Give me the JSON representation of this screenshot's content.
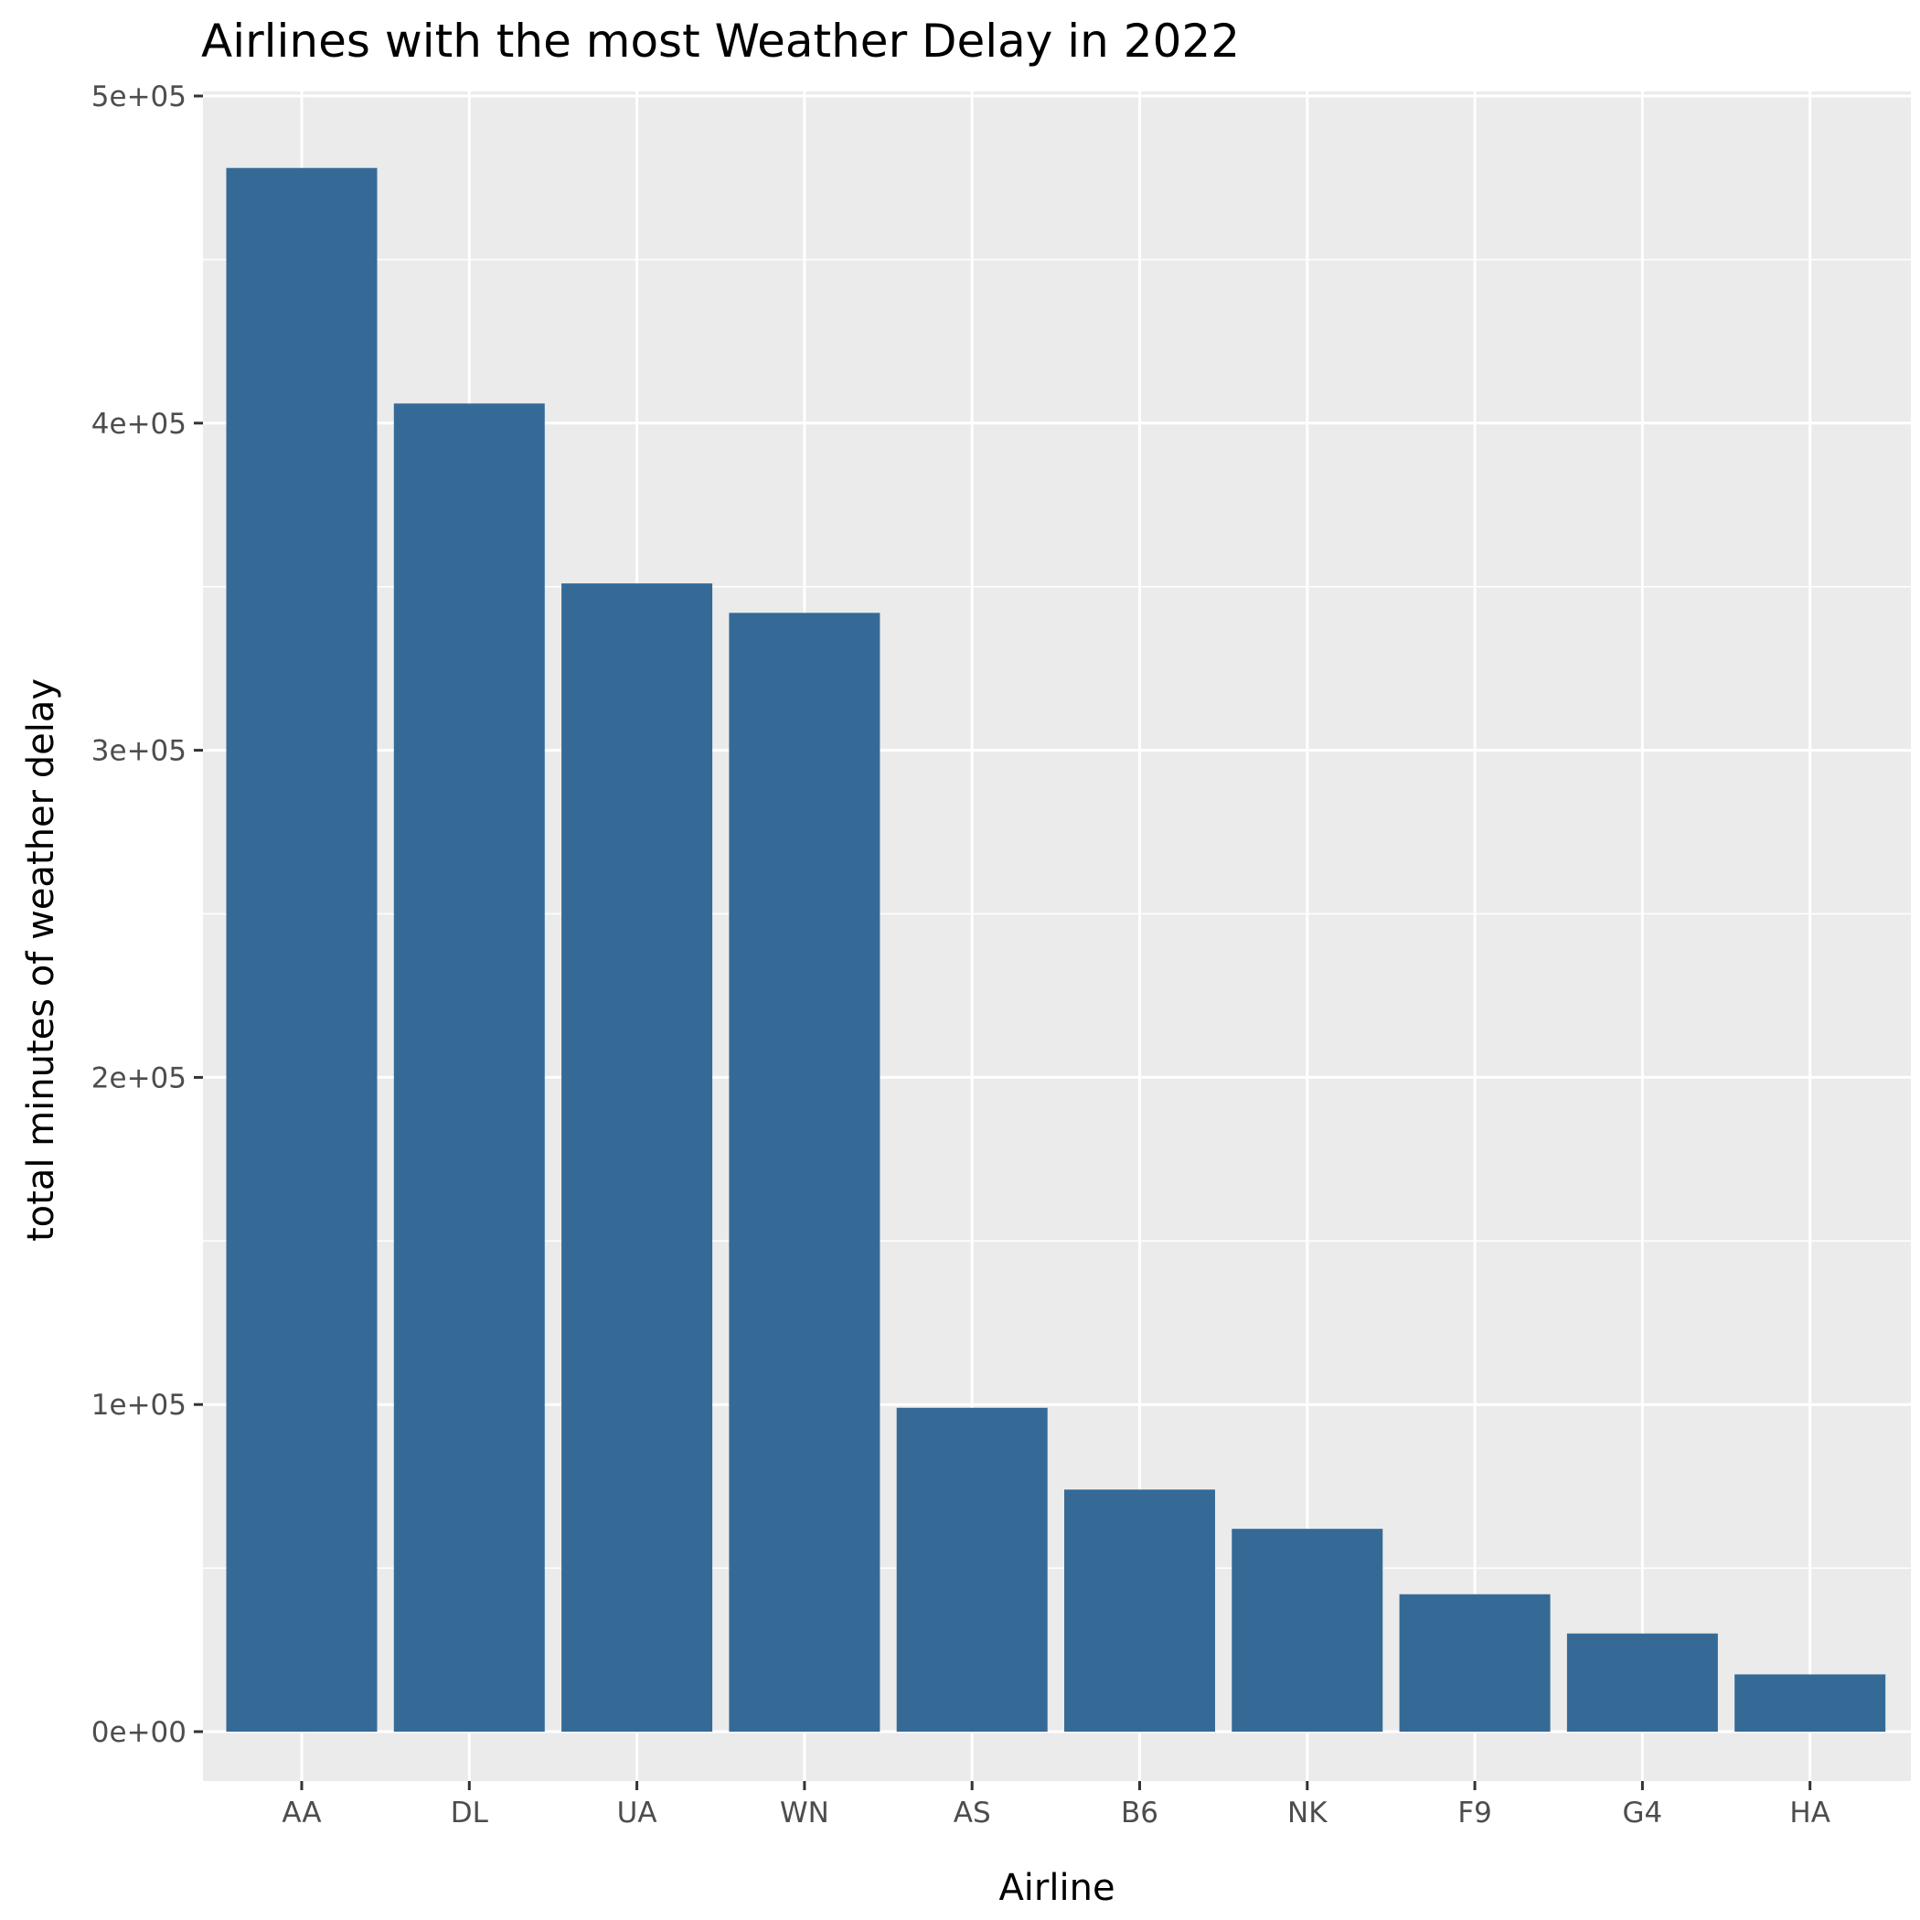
{
  "chart_data": {
    "type": "bar",
    "title": "Airlines with the most Weather Delay in 2022",
    "xlabel": "Airline",
    "ylabel": "total minutes of weather delay",
    "categories": [
      "AA",
      "DL",
      "UA",
      "WN",
      "AS",
      "B6",
      "NK",
      "F9",
      "G4",
      "HA"
    ],
    "values": [
      478000,
      406000,
      351000,
      342000,
      99000,
      74000,
      62000,
      42000,
      30000,
      17500
    ],
    "ylim": [
      -18000,
      500000
    ],
    "yticks": [
      0,
      100000,
      200000,
      300000,
      400000,
      500000
    ],
    "ytick_labels": [
      "0e+00",
      "1e+05",
      "2e+05",
      "3e+05",
      "4e+05",
      "5e+05"
    ],
    "grid": true,
    "legend": "none",
    "colors": {
      "bar": "#356A97",
      "panel": "#EBEBEB",
      "grid": "#FFFFFF"
    }
  }
}
